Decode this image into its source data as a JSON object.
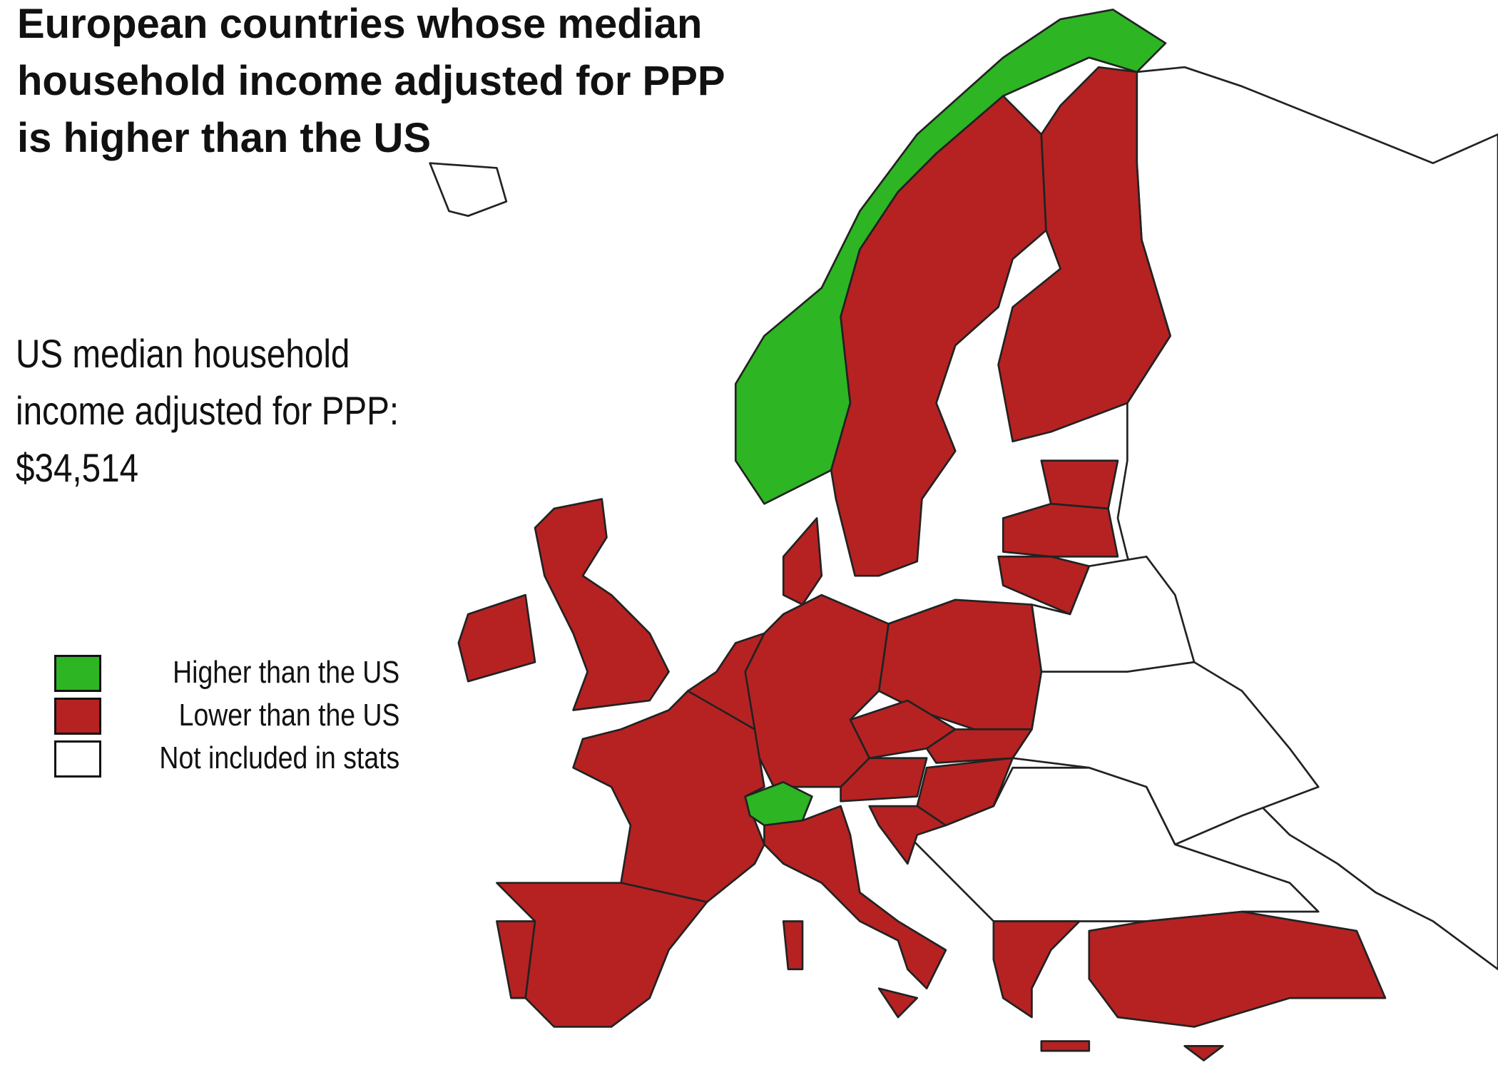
{
  "title_lines": [
    "European countries whose median",
    "household income adjusted for PPP",
    "is higher than the US"
  ],
  "subtitle_lines": [
    "US median household",
    "income adjusted for PPP:",
    "$34,514"
  ],
  "legend": [
    {
      "label": "Higher than the US",
      "color": "#2db523"
    },
    {
      "label": "Lower than the US",
      "color": "#b62222"
    },
    {
      "label": "Not included in stats",
      "color": "#ffffff"
    }
  ]
}
